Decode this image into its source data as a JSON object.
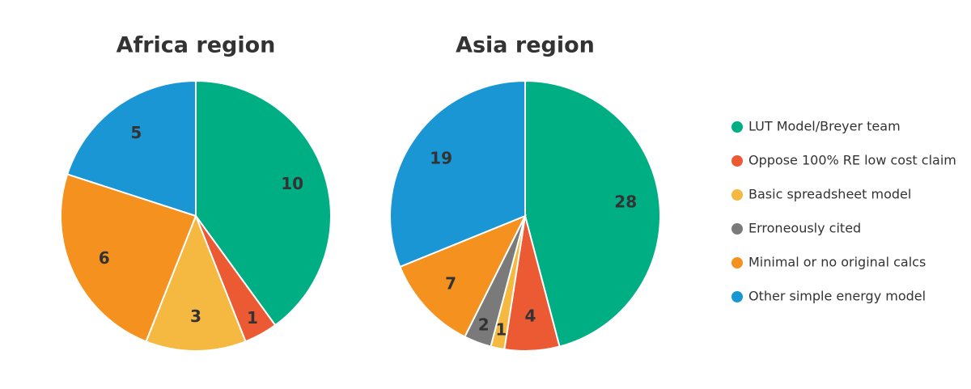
{
  "chart_data": [
    {
      "type": "pie",
      "title": "Africa region",
      "values": [
        10,
        1,
        3,
        null,
        6,
        5
      ]
    },
    {
      "type": "pie",
      "title": "Asia region",
      "values": [
        28,
        4,
        1,
        2,
        7,
        19
      ]
    }
  ],
  "legend": {
    "position": "right",
    "items": [
      {
        "name": "LUT Model/Breyer team",
        "color": "#00ae84"
      },
      {
        "name": "Oppose 100% RE low cost claim",
        "color": "#ec5a34"
      },
      {
        "name": "Basic spreadsheet model",
        "color": "#f5b841"
      },
      {
        "name": "Erroneously cited",
        "color": "#7a7a7a"
      },
      {
        "name": "Minimal or no original calcs",
        "color": "#f5921f"
      },
      {
        "name": "Other simple energy model",
        "color": "#1a96d5"
      }
    ]
  }
}
